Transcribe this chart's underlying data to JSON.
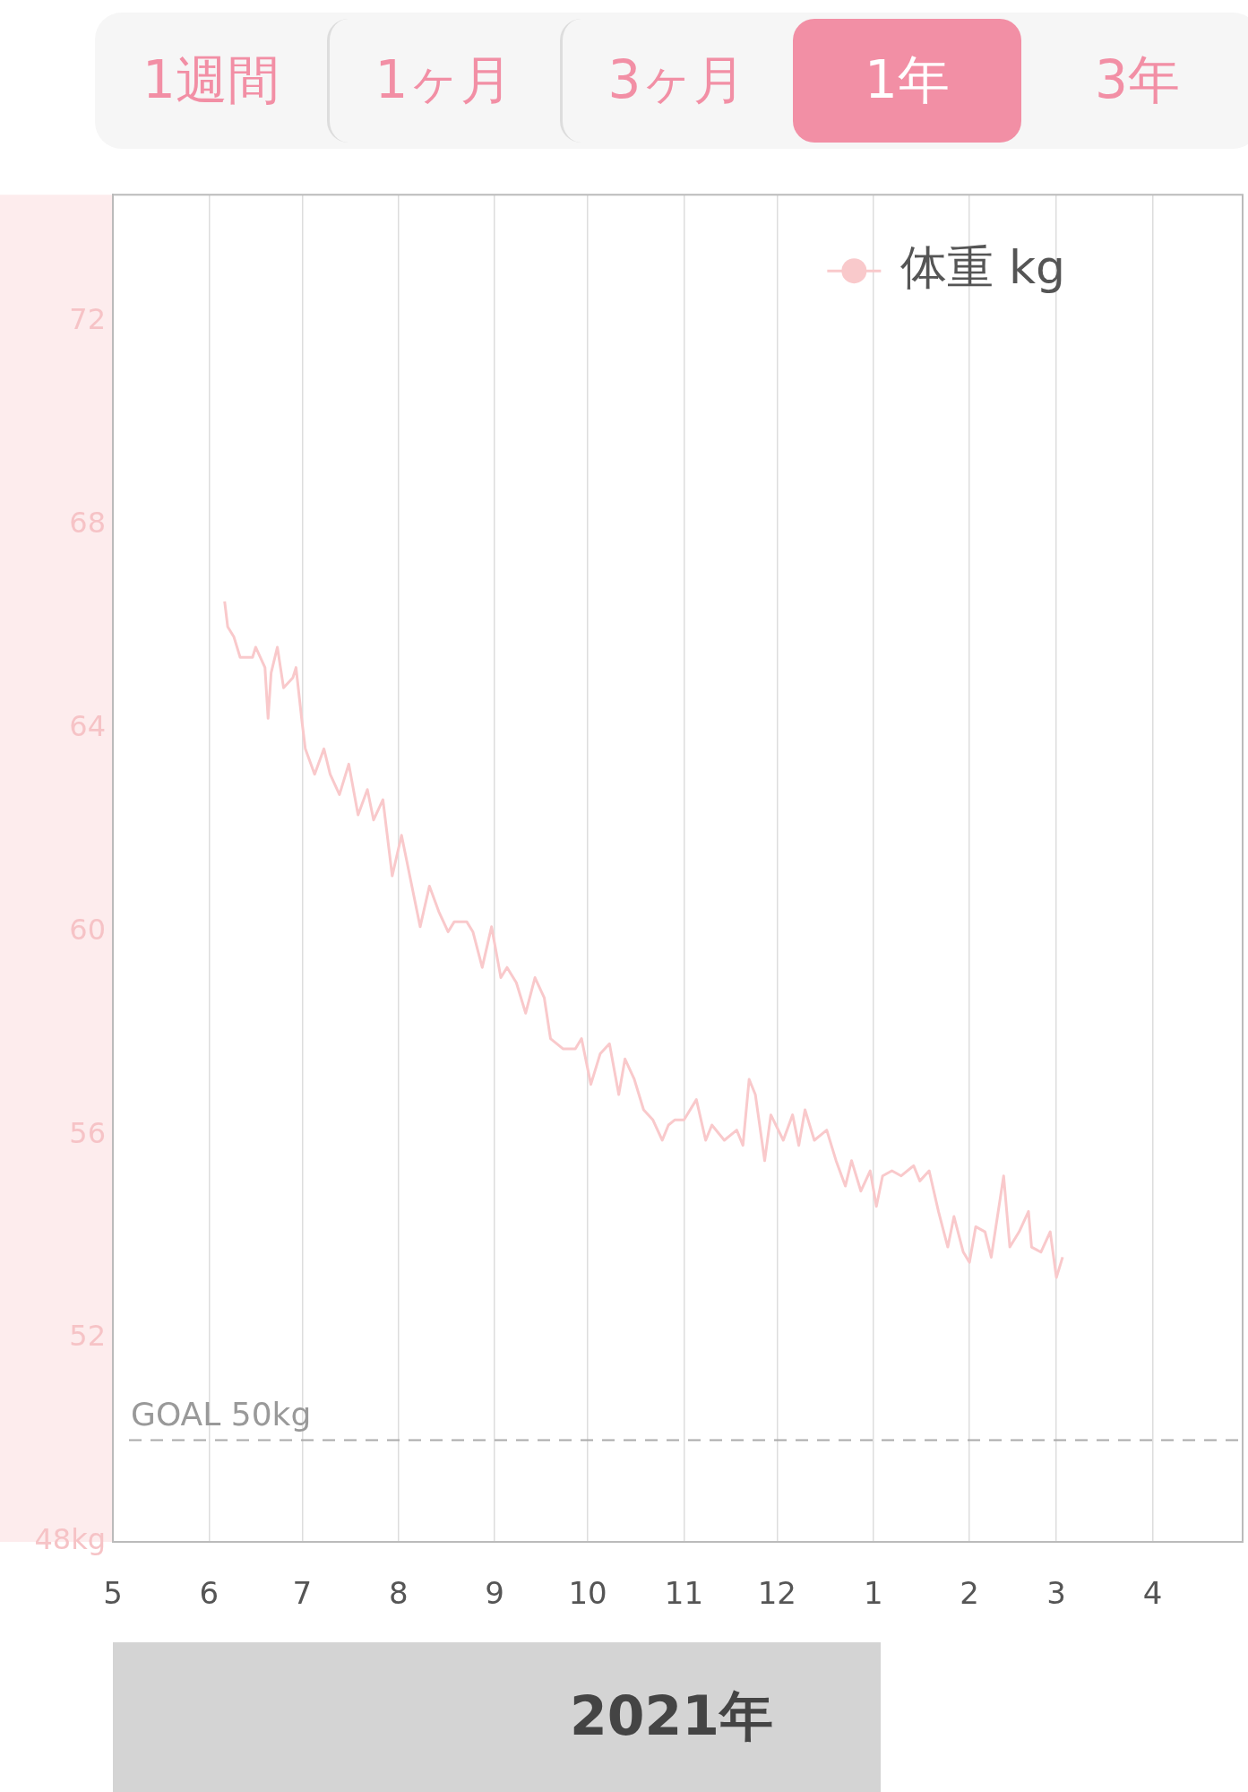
{
  "chart_data": {
    "type": "line",
    "annotations": [
      "1週間",
      "1ヶ月",
      "3ヶ月",
      "1年",
      "3年",
      "2021年"
    ],
    "legend": "top right",
    "grid": "x",
    "marker": "none",
    "xlim": [
      "2021-05-01",
      "2022-04-30"
    ],
    "xticks": [
      {
        "value": "2021-05-01",
        "label": "5"
      },
      {
        "value": "2021-06-01",
        "label": "6"
      },
      {
        "value": "2021-07-01",
        "label": "7"
      },
      {
        "value": "2021-08-01",
        "label": "8"
      },
      {
        "value": "2021-09-01",
        "label": "9"
      },
      {
        "value": "2021-10-01",
        "label": "10"
      },
      {
        "value": "2021-11-01",
        "label": "11"
      },
      {
        "value": "2021-12-01",
        "label": "12"
      },
      {
        "value": "2022-01-01",
        "label": "1"
      },
      {
        "value": "2022-02-01",
        "label": "2"
      },
      {
        "value": "2022-03-01",
        "label": "3"
      },
      {
        "value": "2022-04-01",
        "label": "4"
      }
    ],
    "ylim": [
      48,
      74.5
    ],
    "yticks": [
      {
        "value": 48,
        "label": "48kg"
      },
      52,
      56,
      60,
      64,
      68,
      72
    ],
    "ref_lines": [
      {
        "axis": "y",
        "value": 50,
        "label": "GOAL 50kg",
        "color": "#aaaaaa",
        "line_style": "dashed"
      }
    ],
    "series": [
      {
        "name": "体重 kg",
        "color": "#f9c9cb",
        "x": [
          "2021-06-06",
          "2021-06-07",
          "2021-06-09",
          "2021-06-11",
          "2021-06-15",
          "2021-06-16",
          "2021-06-19",
          "2021-06-20",
          "2021-06-21",
          "2021-06-23",
          "2021-06-25",
          "2021-06-28",
          "2021-06-29",
          "2021-07-01",
          "2021-07-02",
          "2021-07-05",
          "2021-07-08",
          "2021-07-10",
          "2021-07-13",
          "2021-07-16",
          "2021-07-19",
          "2021-07-22",
          "2021-07-24",
          "2021-07-27",
          "2021-07-30",
          "2021-08-02",
          "2021-08-05",
          "2021-08-08",
          "2021-08-11",
          "2021-08-14",
          "2021-08-17",
          "2021-08-19",
          "2021-08-23",
          "2021-08-25",
          "2021-08-28",
          "2021-08-31",
          "2021-09-03",
          "2021-09-05",
          "2021-09-08",
          "2021-09-11",
          "2021-09-14",
          "2021-09-17",
          "2021-09-19",
          "2021-09-23",
          "2021-09-27",
          "2021-09-29",
          "2021-10-02",
          "2021-10-05",
          "2021-10-08",
          "2021-10-11",
          "2021-10-13",
          "2021-10-16",
          "2021-10-19",
          "2021-10-22",
          "2021-10-25",
          "2021-10-27",
          "2021-10-29",
          "2021-11-01",
          "2021-11-05",
          "2021-11-08",
          "2021-11-10",
          "2021-11-14",
          "2021-11-18",
          "2021-11-20",
          "2021-11-22",
          "2021-11-24",
          "2021-11-27",
          "2021-11-29",
          "2021-12-03",
          "2021-12-06",
          "2021-12-08",
          "2021-12-10",
          "2021-12-13",
          "2021-12-17",
          "2021-12-20",
          "2021-12-23",
          "2021-12-25",
          "2021-12-28",
          "2021-12-31",
          "2022-01-02",
          "2022-01-04",
          "2022-01-07",
          "2022-01-10",
          "2022-01-14",
          "2022-01-16",
          "2022-01-19",
          "2022-01-22",
          "2022-01-25",
          "2022-01-27",
          "2022-01-30",
          "2022-02-01",
          "2022-02-03",
          "2022-02-06",
          "2022-02-08",
          "2022-02-12",
          "2022-02-14",
          "2022-02-17",
          "2022-02-20",
          "2022-02-21",
          "2022-02-24",
          "2022-02-27",
          "2022-03-01",
          "2022-03-03"
        ],
        "values": [
          66.5,
          66.0,
          65.8,
          65.4,
          65.4,
          65.6,
          65.2,
          64.2,
          65.1,
          65.6,
          64.8,
          65.0,
          65.2,
          64.1,
          63.6,
          63.1,
          63.6,
          63.1,
          62.7,
          63.3,
          62.3,
          62.8,
          62.2,
          62.6,
          61.1,
          61.9,
          61.0,
          60.1,
          60.9,
          60.4,
          60.0,
          60.2,
          60.2,
          60.0,
          59.3,
          60.1,
          59.1,
          59.3,
          59.0,
          58.4,
          59.1,
          58.7,
          57.9,
          57.7,
          57.7,
          57.9,
          57.0,
          57.6,
          57.8,
          56.8,
          57.5,
          57.1,
          56.5,
          56.3,
          55.9,
          56.2,
          56.3,
          56.3,
          56.7,
          55.9,
          56.2,
          55.9,
          56.1,
          55.8,
          57.1,
          56.8,
          55.5,
          56.4,
          55.9,
          56.4,
          55.8,
          56.5,
          55.9,
          56.1,
          55.5,
          55.0,
          55.5,
          54.9,
          55.3,
          54.6,
          55.2,
          55.3,
          55.2,
          55.4,
          55.1,
          55.3,
          54.5,
          53.8,
          54.4,
          53.7,
          53.5,
          54.2,
          54.1,
          53.6,
          55.2,
          53.8,
          54.1,
          54.5,
          53.8,
          53.7,
          54.1,
          53.2,
          53.6
        ]
      }
    ]
  }
}
